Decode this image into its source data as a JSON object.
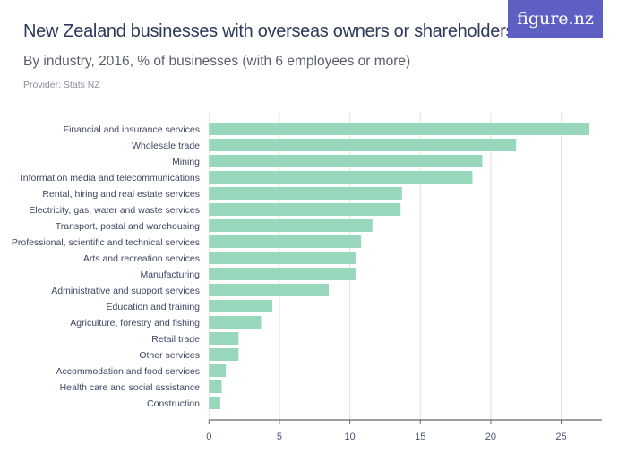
{
  "header": {
    "title": "New Zealand businesses with overseas owners or shareholders",
    "subtitle": "By industry, 2016, % of businesses (with 6 employees or more)",
    "provider": "Provider: Stats NZ",
    "logo": "figure.nz"
  },
  "chart_data": {
    "type": "bar",
    "orientation": "horizontal",
    "categories": [
      "Financial and insurance services",
      "Wholesale trade",
      "Mining",
      "Information media and telecommunications",
      "Rental, hiring and real estate services",
      "Electricity, gas, water and waste services",
      "Transport, postal and warehousing",
      "Professional, scientific and technical services",
      "Arts and recreation services",
      "Manufacturing",
      "Administrative and support services",
      "Education and training",
      "Agriculture, forestry and fishing",
      "Retail trade",
      "Other services",
      "Accommodation and food services",
      "Health care and social assistance",
      "Construction"
    ],
    "values": [
      27.0,
      21.8,
      19.4,
      18.7,
      13.7,
      13.6,
      11.6,
      10.8,
      10.4,
      10.4,
      8.5,
      4.5,
      3.7,
      2.1,
      2.1,
      1.2,
      0.9,
      0.8
    ],
    "xlim": [
      0,
      27.5
    ],
    "xticks": [
      0,
      5,
      10,
      15,
      20,
      25
    ],
    "grid": true,
    "bar_color": "#98d7bb"
  }
}
